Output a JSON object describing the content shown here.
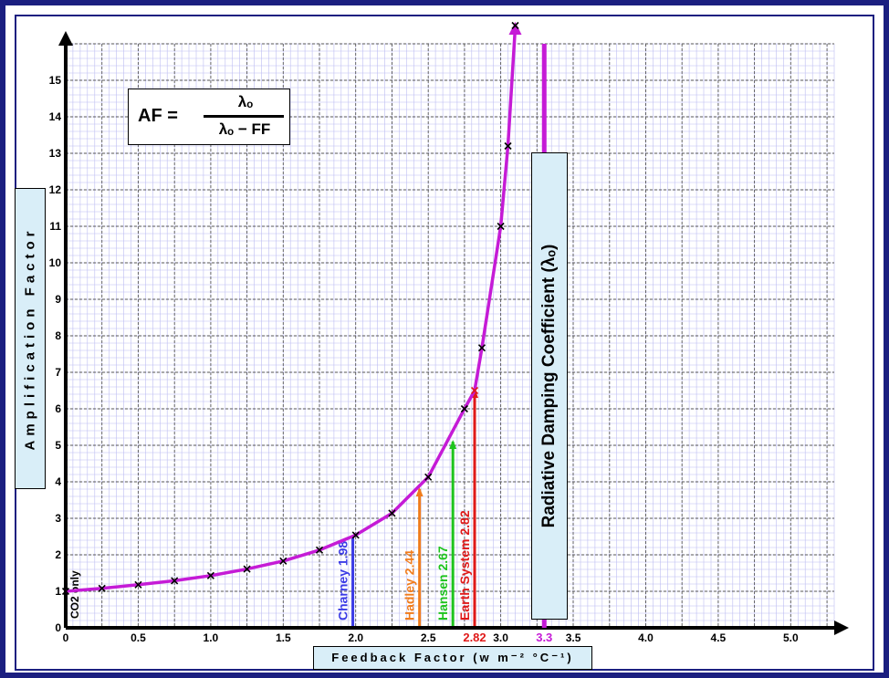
{
  "chart_data": {
    "type": "line",
    "title": "",
    "xlabel": "Feedback Factor (w m⁻² °C⁻¹)",
    "ylabel": "Amplification Factor",
    "xlim": [
      0,
      5.3
    ],
    "ylim": [
      0,
      16
    ],
    "x_ticks": [
      "0",
      "0.5",
      "1.0",
      "1.5",
      "2.0",
      "2.5",
      "3.0",
      "3.5",
      "4.0",
      "4.5",
      "5.0"
    ],
    "y_ticks": [
      "0",
      "1",
      "2",
      "3",
      "4",
      "5",
      "6",
      "7",
      "8",
      "9",
      "10",
      "11",
      "12",
      "13",
      "14",
      "15"
    ],
    "grid": true,
    "lambda_o": 3.3,
    "formula": {
      "lhs": "AF =",
      "numerator": "λₒ",
      "denominator": "λₒ − FF"
    },
    "series": [
      {
        "values": [
          {
            "x": 0,
            "y": 1.0
          },
          {
            "x": 0.25,
            "y": 1.08
          },
          {
            "x": 0.5,
            "y": 1.18
          },
          {
            "x": 0.75,
            "y": 1.29
          },
          {
            "x": 1.0,
            "y": 1.43
          },
          {
            "x": 1.25,
            "y": 1.61
          },
          {
            "x": 1.5,
            "y": 1.83
          },
          {
            "x": 1.75,
            "y": 2.13
          },
          {
            "x": 2.0,
            "y": 2.54
          },
          {
            "x": 2.25,
            "y": 3.14
          },
          {
            "x": 2.5,
            "y": 4.13
          },
          {
            "x": 2.75,
            "y": 6.0
          },
          {
            "x": 2.82,
            "y": 6.5
          },
          {
            "x": 2.87,
            "y": 7.67
          },
          {
            "x": 3.0,
            "y": 11.0
          },
          {
            "x": 3.05,
            "y": 13.2
          },
          {
            "x": 3.1,
            "y": 16.5
          }
        ],
        "color": "#c51bd6"
      }
    ],
    "markers": [
      {
        "label": "CO2 only",
        "x": 0,
        "value": 1.0,
        "color": "#000000"
      },
      {
        "label": "Charney 1.98",
        "x": 1.98,
        "value": 2.5,
        "color": "#3a3ae6"
      },
      {
        "label": "Hadley 2.44",
        "x": 2.44,
        "value": 3.8,
        "color": "#f07c1c"
      },
      {
        "label": "Hansen  2.67",
        "x": 2.67,
        "value": 5.1,
        "color": "#1ec41e"
      },
      {
        "label": "Earth System 2.82",
        "x": 2.82,
        "value": 6.5,
        "color": "#e01919"
      }
    ],
    "xaxis_highlights": [
      {
        "text": "2.82",
        "color": "#e01919"
      },
      {
        "text": "3.3",
        "color": "#c51bd6"
      }
    ],
    "radiative_label": "Radiative Damping Coefficient (λₒ)"
  },
  "labels": {
    "ylabel": "Amplification Factor",
    "xlabel": "Feedback Factor (w m⁻² °C⁻¹)",
    "formula_lhs": "AF =",
    "formula_num": "λₒ",
    "formula_den": "λₒ − FF",
    "radiative": "Radiative Damping Coefficient (λₒ)"
  }
}
